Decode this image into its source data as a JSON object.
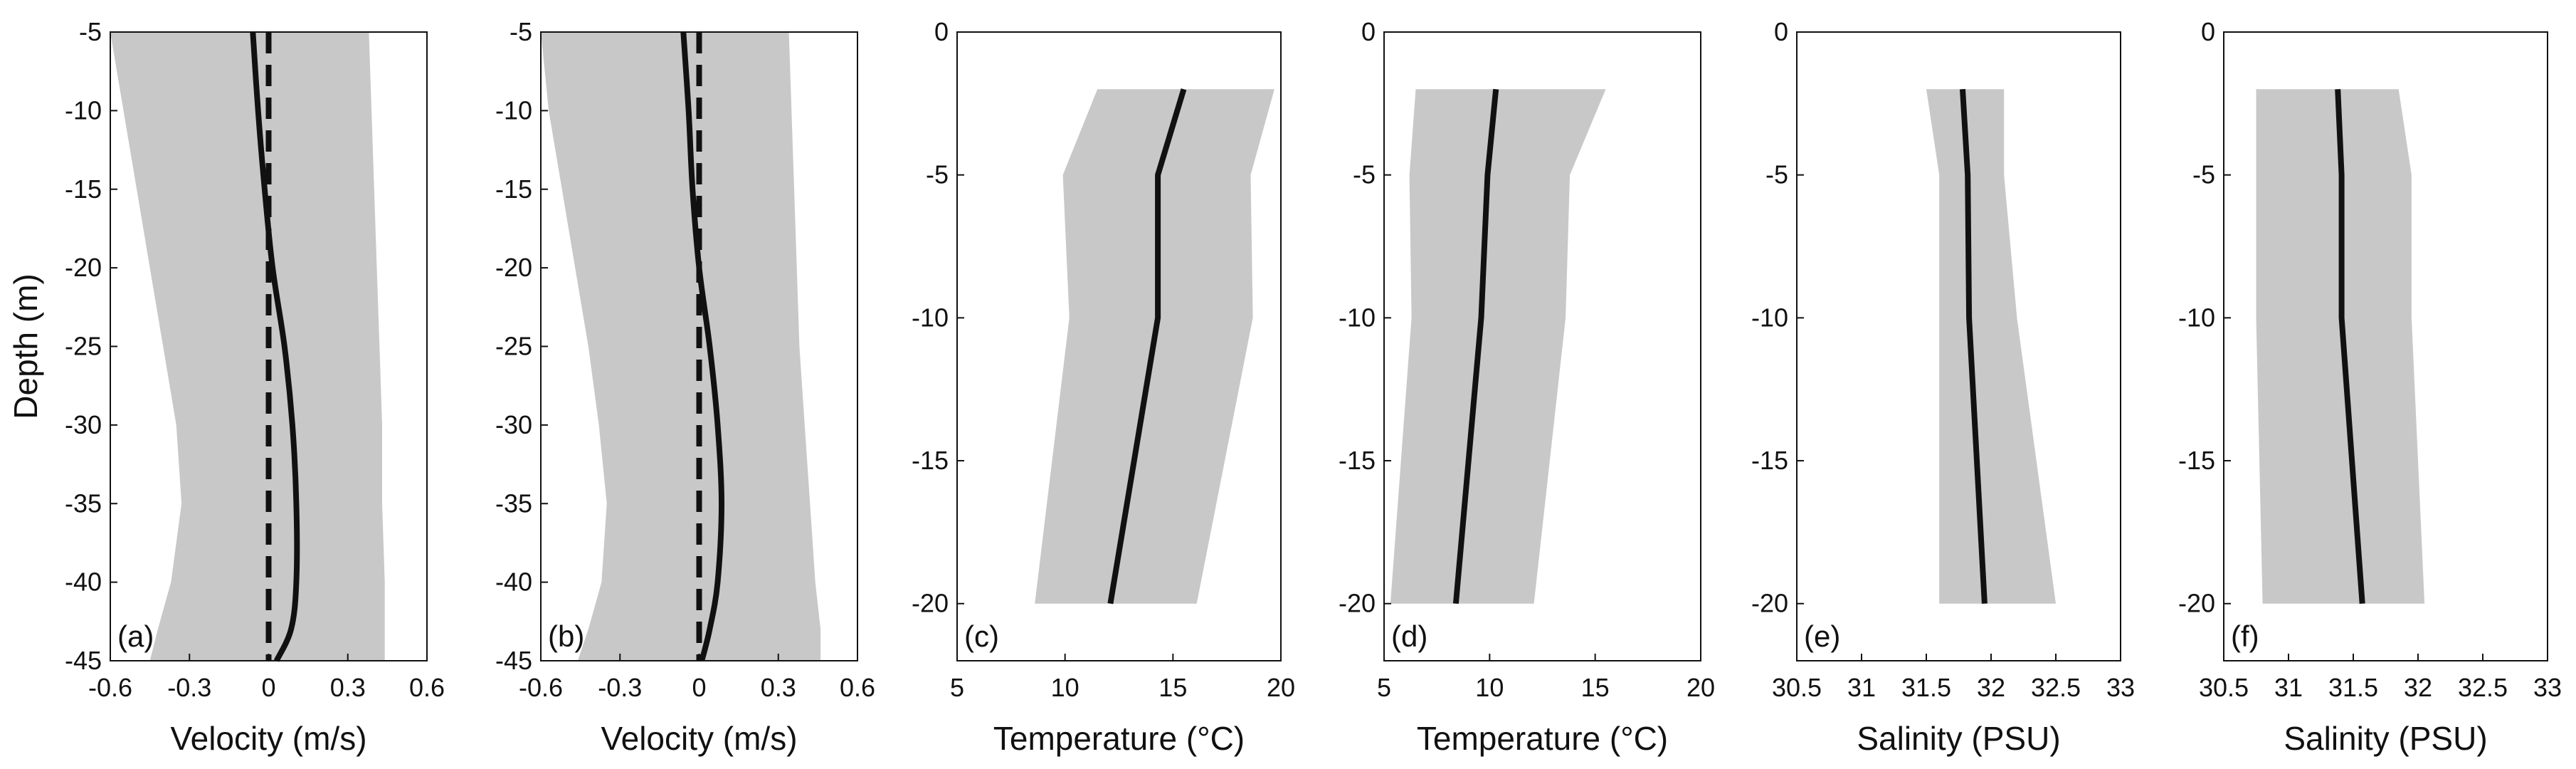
{
  "colors": {
    "band": "#c8c8c8",
    "line": "#111111",
    "axis": "#111111",
    "background": "#ffffff"
  },
  "chart_data": [
    {
      "type": "line",
      "panel": "(a)",
      "xlabel": "Velocity (m/s)",
      "ylabel": "Depth (m)",
      "xlim": [
        -0.6,
        0.6
      ],
      "ylim": [
        -45,
        -5
      ],
      "xticks": [
        -0.6,
        -0.3,
        0,
        0.3,
        0.6
      ],
      "xtick_labels": [
        "-0.6",
        "-0.3",
        "0",
        "0.3",
        "0.6"
      ],
      "yticks": [
        -5,
        -10,
        -15,
        -20,
        -25,
        -30,
        -35,
        -40,
        -45
      ],
      "ytick_labels": [
        "-5",
        "-10",
        "-15",
        "-20",
        "-25",
        "-30",
        "-35",
        "-40",
        "-45"
      ],
      "depth": [
        -5,
        -10,
        -15,
        -20,
        -25,
        -30,
        -35,
        -40,
        -43,
        -45
      ],
      "mean": [
        -0.06,
        -0.04,
        -0.015,
        0.015,
        0.06,
        0.09,
        0.105,
        0.105,
        0.085,
        0.03
      ],
      "reference": [
        0,
        0,
        0,
        0,
        0,
        0,
        0,
        0,
        0,
        0
      ],
      "lower": [
        -0.6,
        -0.55,
        -0.5,
        -0.45,
        -0.4,
        -0.35,
        -0.33,
        -0.37,
        -0.42,
        -0.45
      ],
      "upper": [
        0.38,
        0.39,
        0.4,
        0.41,
        0.42,
        0.43,
        0.43,
        0.44,
        0.44,
        0.44
      ]
    },
    {
      "type": "line",
      "panel": "(b)",
      "xlabel": "Velocity (m/s)",
      "ylabel": "",
      "xlim": [
        -0.6,
        0.6
      ],
      "ylim": [
        -45,
        -5
      ],
      "xticks": [
        -0.6,
        -0.3,
        0,
        0.3,
        0.6
      ],
      "xtick_labels": [
        "-0.6",
        "-0.3",
        "0",
        "0.3",
        "0.6"
      ],
      "yticks": [
        -5,
        -10,
        -15,
        -20,
        -25,
        -30,
        -35,
        -40,
        -45
      ],
      "ytick_labels": [
        "-5",
        "-10",
        "-15",
        "-20",
        "-25",
        "-30",
        "-35",
        "-40",
        "-45"
      ],
      "depth": [
        -5,
        -10,
        -15,
        -20,
        -25,
        -30,
        -35,
        -40,
        -43,
        -45
      ],
      "mean": [
        -0.06,
        -0.04,
        -0.025,
        0.0,
        0.04,
        0.07,
        0.085,
        0.07,
        0.04,
        0.01
      ],
      "reference": [
        0,
        0,
        0,
        0,
        0,
        0,
        0,
        0,
        0,
        0
      ],
      "lower": [
        -0.6,
        -0.57,
        -0.52,
        -0.47,
        -0.42,
        -0.38,
        -0.35,
        -0.37,
        -0.42,
        -0.46
      ],
      "upper": [
        0.34,
        0.35,
        0.36,
        0.37,
        0.38,
        0.4,
        0.42,
        0.44,
        0.46,
        0.46
      ]
    },
    {
      "type": "line",
      "panel": "(c)",
      "xlabel": "Temperature (°C)",
      "ylabel": "",
      "xlim": [
        5,
        20
      ],
      "ylim": [
        -22,
        0
      ],
      "xticks": [
        5,
        10,
        15,
        20
      ],
      "xtick_labels": [
        "5",
        "10",
        "15",
        "20"
      ],
      "yticks": [
        0,
        -5,
        -10,
        -15,
        -20
      ],
      "ytick_labels": [
        "0",
        "-5",
        "-10",
        "-15",
        "-20"
      ],
      "depth": [
        -2,
        -5,
        -10,
        -20
      ],
      "mean": [
        15.5,
        14.3,
        14.3,
        12.1
      ],
      "lower": [
        11.5,
        9.9,
        10.2,
        8.6
      ],
      "upper": [
        19.7,
        18.6,
        18.7,
        16.1
      ]
    },
    {
      "type": "line",
      "panel": "(d)",
      "xlabel": "Temperature (°C)",
      "ylabel": "",
      "xlim": [
        5,
        20
      ],
      "ylim": [
        -22,
        0
      ],
      "xticks": [
        5,
        10,
        15,
        20
      ],
      "xtick_labels": [
        "5",
        "10",
        "15",
        "20"
      ],
      "yticks": [
        0,
        -5,
        -10,
        -15,
        -20
      ],
      "ytick_labels": [
        "0",
        "-5",
        "-10",
        "-15",
        "-20"
      ],
      "depth": [
        -2,
        -5,
        -10,
        -20
      ],
      "mean": [
        10.3,
        9.9,
        9.6,
        8.4
      ],
      "lower": [
        6.5,
        6.2,
        6.3,
        5.3
      ],
      "upper": [
        15.5,
        13.8,
        13.6,
        12.1
      ]
    },
    {
      "type": "line",
      "panel": "(e)",
      "xlabel": "Salinity (PSU)",
      "ylabel": "",
      "xlim": [
        30.5,
        33
      ],
      "ylim": [
        -22,
        0
      ],
      "xticks": [
        30.5,
        31,
        31.5,
        32,
        32.5,
        33
      ],
      "xtick_labels": [
        "30.5",
        "31",
        "31.5",
        "32",
        "32.5",
        "33"
      ],
      "yticks": [
        0,
        -5,
        -10,
        -15,
        -20
      ],
      "ytick_labels": [
        "0",
        "-5",
        "-10",
        "-15",
        "-20"
      ],
      "depth": [
        -2,
        -5,
        -10,
        -20
      ],
      "mean": [
        31.78,
        31.82,
        31.83,
        31.95
      ],
      "lower": [
        31.5,
        31.6,
        31.6,
        31.6
      ],
      "upper": [
        32.1,
        32.1,
        32.2,
        32.5
      ]
    },
    {
      "type": "line",
      "panel": "(f)",
      "xlabel": "Salinity (PSU)",
      "ylabel": "",
      "xlim": [
        30.5,
        33
      ],
      "ylim": [
        -22,
        0
      ],
      "xticks": [
        30.5,
        31,
        31.5,
        32,
        32.5,
        33
      ],
      "xtick_labels": [
        "30.5",
        "31",
        "31.5",
        "32",
        "32.5",
        "33"
      ],
      "yticks": [
        0,
        -5,
        -10,
        -15,
        -20
      ],
      "ytick_labels": [
        "0",
        "-5",
        "-10",
        "-15",
        "-20"
      ],
      "depth": [
        -2,
        -5,
        -10,
        -20
      ],
      "mean": [
        31.38,
        31.41,
        31.41,
        31.57
      ],
      "lower": [
        30.75,
        30.75,
        30.75,
        30.8
      ],
      "upper": [
        31.85,
        31.95,
        31.95,
        32.05
      ]
    }
  ]
}
